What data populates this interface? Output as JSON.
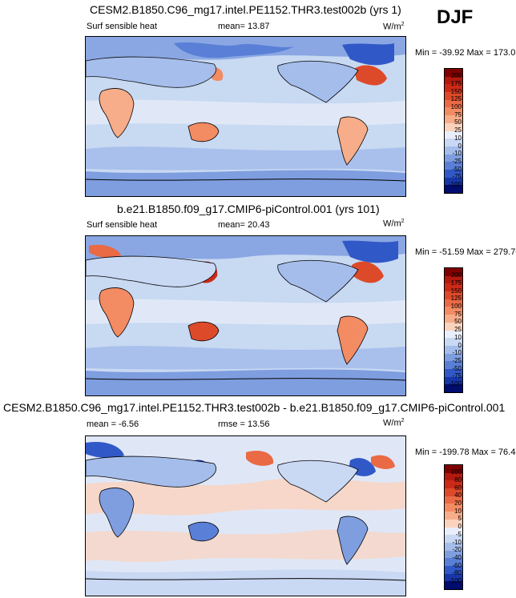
{
  "season": "DJF",
  "panels": [
    {
      "title": "CESM2.B1850.C96_mg17.intel.PE1152.THR3.test002b (yrs 1)",
      "variable": "Surf sensible heat",
      "stat1": "mean=  13.87",
      "stat2": "",
      "units": "W/m",
      "units_sup": "2",
      "minmax": "Min = -39.92 Max = 173.05",
      "colorbar_labels": [
        "200",
        "175",
        "150",
        "125",
        "100",
        "75",
        "50",
        "25",
        "10",
        "0",
        "-10",
        "-25",
        "-50",
        "-75",
        "-100"
      ]
    },
    {
      "title": "b.e21.B1850.f09_g17.CMIP6-piControl.001 (yrs 101)",
      "variable": "Surf sensible heat",
      "stat1": "mean=  20.43",
      "stat2": "",
      "units": "W/m",
      "units_sup": "2",
      "minmax": "Min = -51.59 Max = 279.70",
      "colorbar_labels": [
        "200",
        "175",
        "150",
        "125",
        "100",
        "75",
        "50",
        "25",
        "10",
        "0",
        "-10",
        "-25",
        "-50",
        "-75",
        "-100"
      ]
    },
    {
      "title": "CESM2.B1850.C96_mg17.intel.PE1152.THR3.test002b - b.e21.B1850.f09_g17.CMIP6-piControl.001",
      "variable": "",
      "stat1": "mean =  -6.56",
      "stat2": "rmse =  13.56",
      "units": "W/m",
      "units_sup": "2",
      "minmax": "Min = -199.78 Max =  76.44",
      "colorbar_labels": [
        "100",
        "80",
        "60",
        "40",
        "20",
        "10",
        "5",
        "0",
        "-5",
        "-10",
        "-20",
        "-40",
        "-60",
        "-80",
        "-100"
      ]
    }
  ],
  "colors": {
    "scale": [
      "#7f0000",
      "#b31a0f",
      "#cc2a18",
      "#dd4a2a",
      "#ea6a45",
      "#f38b63",
      "#f7ad8a",
      "#fbd3bd",
      "#e9eefa",
      "#c9d8f3",
      "#a5bdeb",
      "#7f9ee0",
      "#5a7fd6",
      "#3158c7",
      "#1736a8",
      "#000c6e"
    ],
    "land_warm": "#f4a47e",
    "ocean_base": "#c8d9f2"
  }
}
